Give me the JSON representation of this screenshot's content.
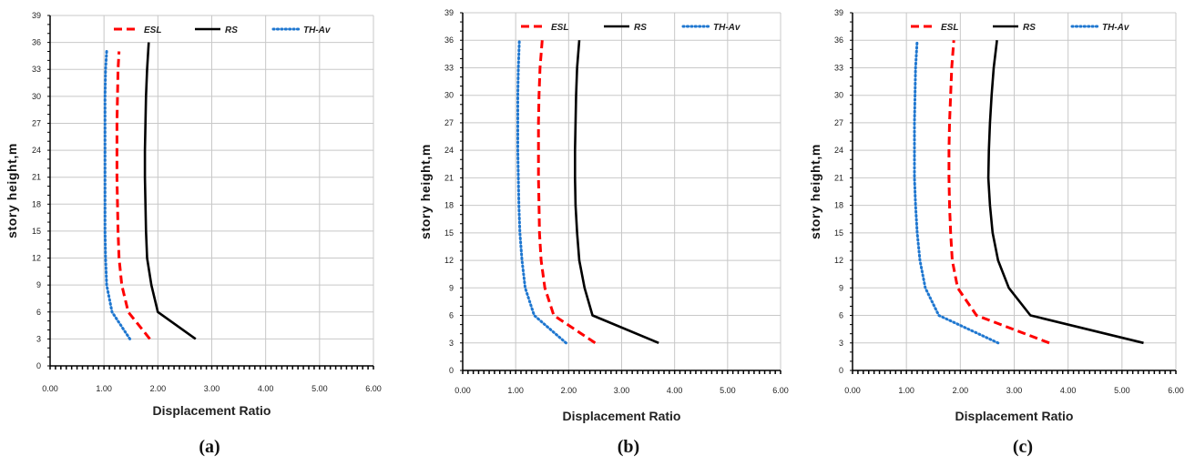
{
  "chart_data": [
    {
      "type": "line",
      "panel_label": "(a)",
      "xlabel": "Displacement Ratio",
      "ylabel": "story height,m",
      "xlim": [
        0,
        6
      ],
      "ylim": [
        0,
        39
      ],
      "x_ticks": [
        "0.00",
        "1.00",
        "2.00",
        "3.00",
        "4.00",
        "5.00",
        "6.00"
      ],
      "y_ticks": [
        "0",
        "3",
        "6",
        "9",
        "12",
        "15",
        "18",
        "21",
        "24",
        "27",
        "30",
        "33",
        "36",
        "39"
      ],
      "grid": true,
      "legend_position": "top",
      "series": [
        {
          "name": "ESL",
          "style": "dashed",
          "color": "#ff0000",
          "points": [
            [
              1.85,
              3
            ],
            [
              1.45,
              6
            ],
            [
              1.33,
              9
            ],
            [
              1.28,
              12
            ],
            [
              1.26,
              15
            ],
            [
              1.25,
              18
            ],
            [
              1.24,
              21
            ],
            [
              1.24,
              24
            ],
            [
              1.24,
              27
            ],
            [
              1.25,
              30
            ],
            [
              1.26,
              33
            ],
            [
              1.28,
              35
            ]
          ]
        },
        {
          "name": "RS",
          "style": "solid",
          "color": "#000000",
          "points": [
            [
              2.7,
              3
            ],
            [
              2.0,
              6
            ],
            [
              1.88,
              9
            ],
            [
              1.8,
              12
            ],
            [
              1.78,
              15
            ],
            [
              1.77,
              18
            ],
            [
              1.76,
              21
            ],
            [
              1.76,
              24
            ],
            [
              1.77,
              27
            ],
            [
              1.78,
              30
            ],
            [
              1.8,
              33
            ],
            [
              1.83,
              36
            ]
          ]
        },
        {
          "name": "TH-Av",
          "style": "dotted",
          "color": "#1f77d0",
          "points": [
            [
              1.48,
              3
            ],
            [
              1.15,
              6
            ],
            [
              1.05,
              9
            ],
            [
              1.03,
              12
            ],
            [
              1.02,
              15
            ],
            [
              1.02,
              18
            ],
            [
              1.02,
              21
            ],
            [
              1.02,
              24
            ],
            [
              1.02,
              27
            ],
            [
              1.02,
              30
            ],
            [
              1.03,
              33
            ],
            [
              1.05,
              35
            ]
          ]
        }
      ]
    },
    {
      "type": "line",
      "panel_label": "(b)",
      "xlabel": "Displacement Ratio",
      "ylabel": "story height,m",
      "xlim": [
        0,
        6
      ],
      "ylim": [
        0,
        39
      ],
      "x_ticks": [
        "0.00",
        "1.00",
        "2.00",
        "3.00",
        "4.00",
        "5.00",
        "6.00"
      ],
      "y_ticks": [
        "0",
        "3",
        "6",
        "9",
        "12",
        "15",
        "18",
        "21",
        "24",
        "27",
        "30",
        "33",
        "36",
        "39"
      ],
      "grid": true,
      "legend_position": "top",
      "series": [
        {
          "name": "ESL",
          "style": "dashed",
          "color": "#ff0000",
          "points": [
            [
              2.5,
              3
            ],
            [
              1.72,
              6
            ],
            [
              1.55,
              9
            ],
            [
              1.48,
              12
            ],
            [
              1.45,
              15
            ],
            [
              1.44,
              18
            ],
            [
              1.43,
              21
            ],
            [
              1.43,
              24
            ],
            [
              1.43,
              27
            ],
            [
              1.44,
              30
            ],
            [
              1.46,
              33
            ],
            [
              1.5,
              36
            ]
          ]
        },
        {
          "name": "RS",
          "style": "solid",
          "color": "#000000",
          "points": [
            [
              3.7,
              3
            ],
            [
              2.45,
              6
            ],
            [
              2.3,
              9
            ],
            [
              2.2,
              12
            ],
            [
              2.16,
              15
            ],
            [
              2.13,
              18
            ],
            [
              2.12,
              21
            ],
            [
              2.12,
              24
            ],
            [
              2.13,
              27
            ],
            [
              2.14,
              30
            ],
            [
              2.16,
              33
            ],
            [
              2.2,
              36
            ]
          ]
        },
        {
          "name": "TH-Av",
          "style": "dotted",
          "color": "#1f77d0",
          "points": [
            [
              1.95,
              3
            ],
            [
              1.35,
              6
            ],
            [
              1.18,
              9
            ],
            [
              1.12,
              12
            ],
            [
              1.08,
              15
            ],
            [
              1.06,
              18
            ],
            [
              1.05,
              21
            ],
            [
              1.04,
              24
            ],
            [
              1.04,
              27
            ],
            [
              1.04,
              30
            ],
            [
              1.05,
              33
            ],
            [
              1.07,
              36
            ]
          ]
        }
      ]
    },
    {
      "type": "line",
      "panel_label": "(c)",
      "xlabel": "Displacement Ratio",
      "ylabel": "story height,m",
      "xlim": [
        0,
        6
      ],
      "ylim": [
        0,
        39
      ],
      "x_ticks": [
        "0.00",
        "1.00",
        "2.00",
        "3.00",
        "4.00",
        "5.00",
        "6.00"
      ],
      "y_ticks": [
        "0",
        "3",
        "6",
        "9",
        "12",
        "15",
        "18",
        "21",
        "24",
        "27",
        "30",
        "33",
        "36",
        "39"
      ],
      "grid": true,
      "legend_position": "top",
      "series": [
        {
          "name": "ESL",
          "style": "dashed",
          "color": "#ff0000",
          "points": [
            [
              3.65,
              3
            ],
            [
              2.3,
              6
            ],
            [
              1.95,
              9
            ],
            [
              1.85,
              12
            ],
            [
              1.82,
              15
            ],
            [
              1.8,
              18
            ],
            [
              1.79,
              21
            ],
            [
              1.79,
              24
            ],
            [
              1.8,
              27
            ],
            [
              1.82,
              30
            ],
            [
              1.84,
              33
            ],
            [
              1.88,
              36
            ]
          ]
        },
        {
          "name": "RS",
          "style": "solid",
          "color": "#000000",
          "points": [
            [
              5.4,
              3
            ],
            [
              3.3,
              6
            ],
            [
              2.9,
              9
            ],
            [
              2.7,
              12
            ],
            [
              2.6,
              15
            ],
            [
              2.55,
              18
            ],
            [
              2.52,
              21
            ],
            [
              2.53,
              24
            ],
            [
              2.55,
              27
            ],
            [
              2.58,
              30
            ],
            [
              2.62,
              33
            ],
            [
              2.68,
              36
            ]
          ]
        },
        {
          "name": "TH-Av",
          "style": "dotted",
          "color": "#1f77d0",
          "points": [
            [
              2.7,
              3
            ],
            [
              1.6,
              6
            ],
            [
              1.35,
              9
            ],
            [
              1.25,
              12
            ],
            [
              1.2,
              15
            ],
            [
              1.17,
              18
            ],
            [
              1.15,
              21
            ],
            [
              1.15,
              24
            ],
            [
              1.15,
              27
            ],
            [
              1.16,
              30
            ],
            [
              1.17,
              33
            ],
            [
              1.2,
              36
            ]
          ]
        }
      ]
    }
  ]
}
